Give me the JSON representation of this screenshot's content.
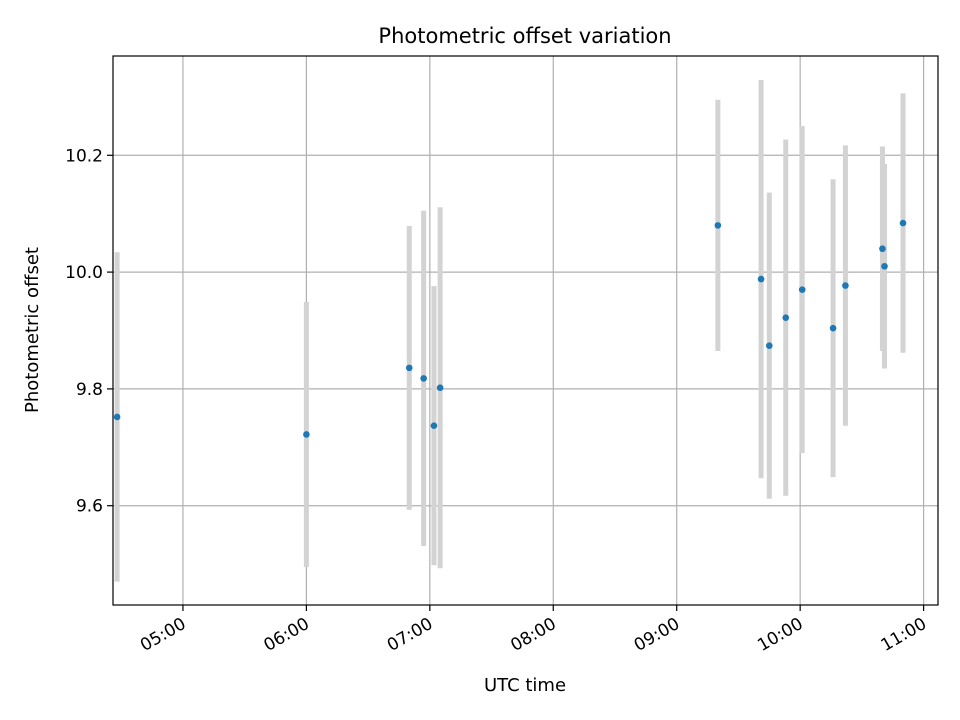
{
  "chart_data": {
    "type": "scatter",
    "title": "Photometric offset variation",
    "xlabel": "UTC time",
    "ylabel": "Photometric offset",
    "xlim": [
      "04:26",
      "11:07"
    ],
    "ylim": [
      9.43,
      10.37
    ],
    "x_ticks": [
      "05:00",
      "06:00",
      "07:00",
      "08:00",
      "09:00",
      "10:00",
      "11:00"
    ],
    "y_ticks": [
      9.6,
      9.8,
      10.0,
      10.2
    ],
    "y_tick_labels": [
      "9.6",
      "9.8",
      "10.0",
      "10.2"
    ],
    "grid": true,
    "colors": {
      "point": "#1f77b4",
      "errorbar": "#d3d3d3",
      "grid": "#b0b0b0",
      "axis": "#000000"
    },
    "points": [
      {
        "x": "04:28",
        "y": 9.752,
        "err": 0.282
      },
      {
        "x": "06:00",
        "y": 9.722,
        "err": 0.227
      },
      {
        "x": "06:50",
        "y": 9.836,
        "err": 0.243
      },
      {
        "x": "06:57",
        "y": 9.818,
        "err": 0.287
      },
      {
        "x": "07:02",
        "y": 9.737,
        "err": 0.239
      },
      {
        "x": "07:05",
        "y": 9.802,
        "err": 0.309
      },
      {
        "x": "09:20",
        "y": 10.08,
        "err": 0.215
      },
      {
        "x": "09:41",
        "y": 9.988,
        "err": 0.341
      },
      {
        "x": "09:45",
        "y": 9.874,
        "err": 0.262
      },
      {
        "x": "09:53",
        "y": 9.922,
        "err": 0.305
      },
      {
        "x": "10:01",
        "y": 9.97,
        "err": 0.28
      },
      {
        "x": "10:16",
        "y": 9.904,
        "err": 0.255
      },
      {
        "x": "10:22",
        "y": 9.977,
        "err": 0.24
      },
      {
        "x": "10:40",
        "y": 10.04,
        "err": 0.175
      },
      {
        "x": "10:41",
        "y": 10.01,
        "err": 0.175
      },
      {
        "x": "10:50",
        "y": 10.084,
        "err": 0.222
      }
    ]
  }
}
